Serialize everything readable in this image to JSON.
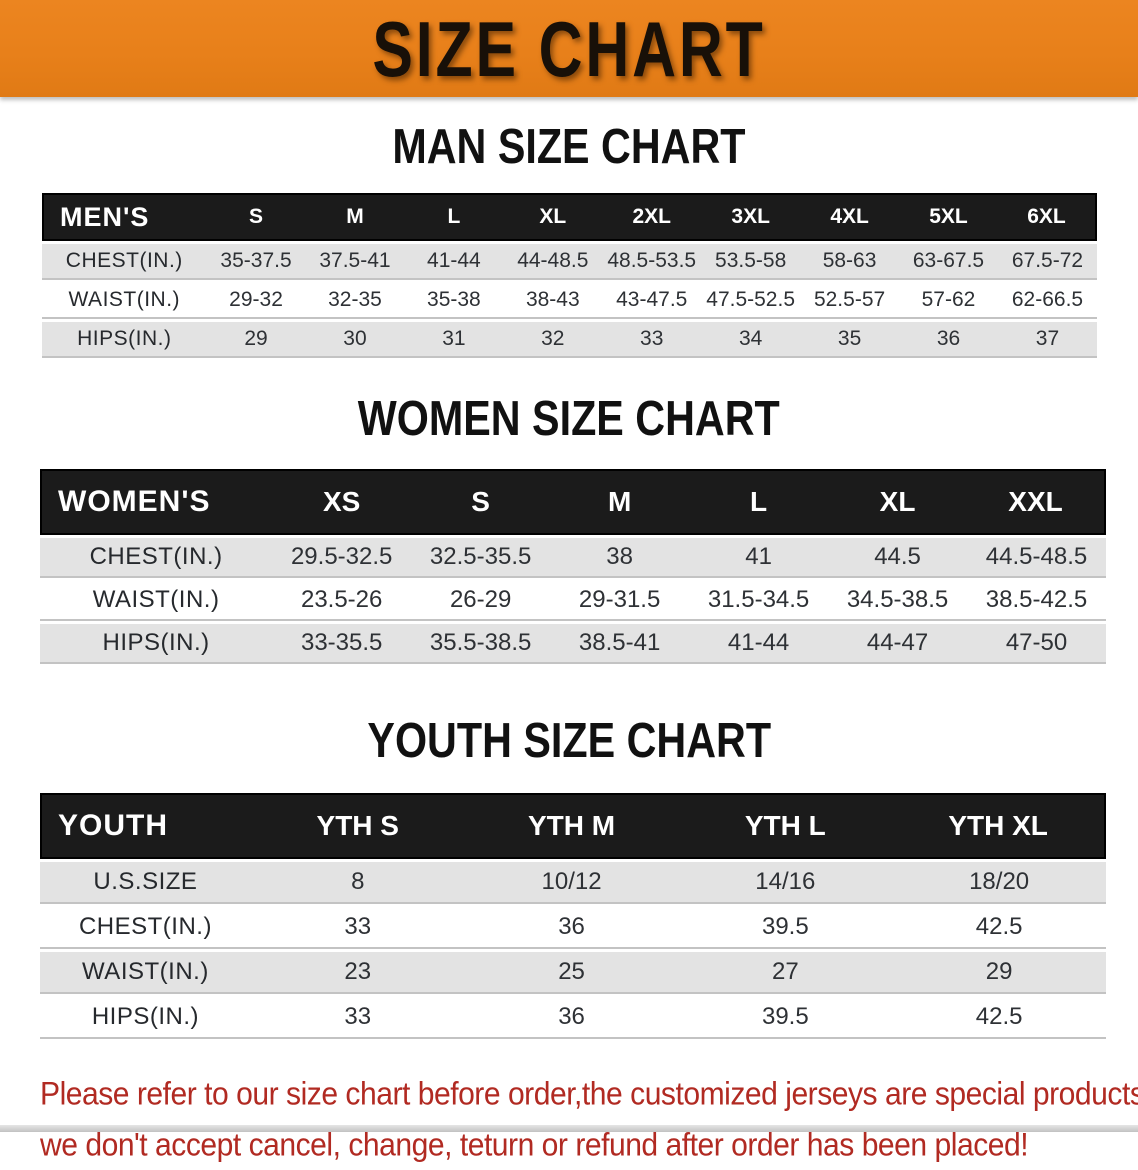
{
  "banner": {
    "title": "SIZE CHART",
    "bg_color": "#e8801a",
    "text_color": "#181008"
  },
  "men": {
    "title": "MAN SIZE CHART",
    "header_label": "MEN'S",
    "sizes": [
      "S",
      "M",
      "L",
      "XL",
      "2XL",
      "3XL",
      "4XL",
      "5XL",
      "6XL"
    ],
    "rows": [
      {
        "label": "CHEST(IN.)",
        "values": [
          "35-37.5",
          "37.5-41",
          "41-44",
          "44-48.5",
          "48.5-53.5",
          "53.5-58",
          "58-63",
          "63-67.5",
          "67.5-72"
        ]
      },
      {
        "label": "WAIST(IN.)",
        "values": [
          "29-32",
          "32-35",
          "35-38",
          "38-43",
          "43-47.5",
          "47.5-52.5",
          "52.5-57",
          "57-62",
          "62-66.5"
        ]
      },
      {
        "label": "HIPS(IN.)",
        "values": [
          "29",
          "30",
          "31",
          "32",
          "33",
          "34",
          "35",
          "36",
          "37"
        ]
      }
    ]
  },
  "women": {
    "title": "WOMEN SIZE CHART",
    "header_label": "WOMEN'S",
    "sizes": [
      "XS",
      "S",
      "M",
      "L",
      "XL",
      "XXL"
    ],
    "rows": [
      {
        "label": "CHEST(IN.)",
        "values": [
          "29.5-32.5",
          "32.5-35.5",
          "38",
          "41",
          "44.5",
          "44.5-48.5"
        ]
      },
      {
        "label": "WAIST(IN.)",
        "values": [
          "23.5-26",
          "26-29",
          "29-31.5",
          "31.5-34.5",
          "34.5-38.5",
          "38.5-42.5"
        ]
      },
      {
        "label": "HIPS(IN.)",
        "values": [
          "33-35.5",
          "35.5-38.5",
          "38.5-41",
          "41-44",
          "44-47",
          "47-50"
        ]
      }
    ]
  },
  "youth": {
    "title": "YOUTH SIZE CHART",
    "header_label": "YOUTH",
    "sizes": [
      "YTH S",
      "YTH M",
      "YTH L",
      "YTH XL"
    ],
    "rows": [
      {
        "label": "U.S.SIZE",
        "values": [
          "8",
          "10/12",
          "14/16",
          "18/20"
        ]
      },
      {
        "label": "CHEST(IN.)",
        "values": [
          "33",
          "36",
          "39.5",
          "42.5"
        ]
      },
      {
        "label": "WAIST(IN.)",
        "values": [
          "23",
          "25",
          "27",
          "29"
        ]
      },
      {
        "label": "HIPS(IN.)",
        "values": [
          "33",
          "36",
          "39.5",
          "42.5"
        ]
      }
    ]
  },
  "footer": {
    "line1": "Please refer to our size chart before order,the customized jerseys are special products,",
    "line2": "we don't accept cancel, change, teturn or refund after order has been placed!",
    "color": "#b12a22"
  }
}
